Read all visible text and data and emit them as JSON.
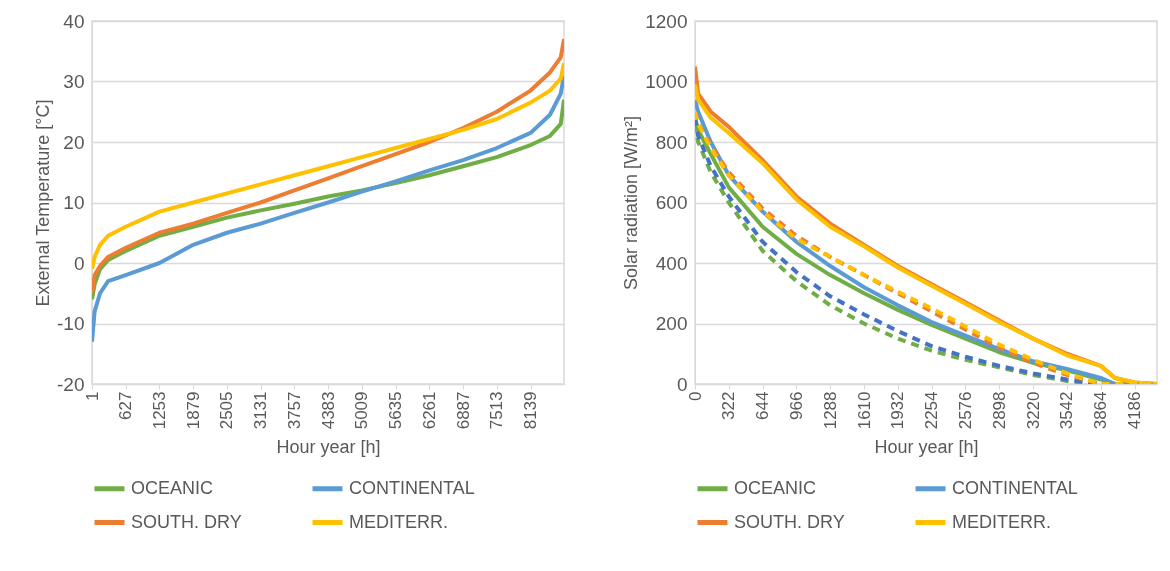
{
  "chart_data": [
    {
      "type": "line",
      "xlabel": "Hour year [h]",
      "ylabel": "External Temperature [°C]",
      "xlim": [
        1,
        8760
      ],
      "xticks": [
        1,
        627,
        1253,
        1879,
        2505,
        3131,
        3757,
        4383,
        5009,
        5635,
        6261,
        6887,
        7513,
        8139
      ],
      "ylim": [
        -20,
        40
      ],
      "yticks": [
        -20,
        -10,
        0,
        10,
        20,
        30,
        40
      ],
      "grid": "y",
      "legend": "bottom",
      "marker": "none",
      "x": [
        1,
        50,
        150,
        300,
        627,
        1253,
        1879,
        2505,
        3131,
        3757,
        4383,
        5009,
        5635,
        6261,
        6887,
        7513,
        8139,
        8500,
        8700,
        8760
      ],
      "series": [
        {
          "name": "OCEANIC",
          "color": "#70ad47",
          "values": [
            -6,
            -3.5,
            -1,
            0.5,
            2,
            4.5,
            6,
            7.5,
            8.7,
            9.8,
            11,
            12,
            13.2,
            14.5,
            16,
            17.5,
            19.5,
            21,
            23,
            27
          ]
        },
        {
          "name": "CONTINENTAL",
          "color": "#5b9bd5",
          "values": [
            -13,
            -8,
            -5,
            -3,
            -2,
            0,
            3,
            5,
            6.5,
            8.3,
            10,
            11.8,
            13.5,
            15.3,
            17,
            19,
            21.5,
            24.5,
            28,
            31
          ]
        },
        {
          "name": "SOUTH. DRY",
          "color": "#ed7d31",
          "values": [
            -5,
            -2,
            -0.5,
            1,
            2.5,
            5,
            6.5,
            8.3,
            10,
            12,
            14,
            16,
            18,
            20,
            22.3,
            25,
            28.5,
            31.5,
            34,
            37
          ]
        },
        {
          "name": "MEDITERR.",
          "color": "#ffc000",
          "values": [
            -1,
            1,
            3,
            4.5,
            6,
            8.5,
            10,
            11.5,
            13,
            14.5,
            16,
            17.5,
            19,
            20.5,
            22,
            23.8,
            26.5,
            28.5,
            30.5,
            33
          ]
        }
      ]
    },
    {
      "type": "line",
      "xlabel": "Hour year [h]",
      "ylabel": "Solar radiation [W/m²]",
      "xlim": [
        0,
        4400
      ],
      "xticks": [
        0,
        322,
        644,
        966,
        1288,
        1610,
        1932,
        2254,
        2576,
        2898,
        3220,
        3542,
        3864,
        4186
      ],
      "ylim": [
        0,
        1200
      ],
      "yticks": [
        0,
        200,
        400,
        600,
        800,
        1000,
        1200
      ],
      "grid": "y",
      "legend": "bottom",
      "marker": "none",
      "x": [
        0,
        30,
        150,
        322,
        644,
        966,
        1288,
        1610,
        1932,
        2254,
        2576,
        2898,
        3220,
        3542,
        3864,
        4000,
        4186,
        4400
      ],
      "series": [
        {
          "name": "OCEANIC",
          "color": "#70ad47",
          "values": [
            880,
            840,
            760,
            650,
            520,
            430,
            360,
            300,
            245,
            195,
            150,
            105,
            70,
            45,
            15,
            0,
            0,
            0
          ]
        },
        {
          "name": "CONTINENTAL",
          "color": "#5b9bd5",
          "values": [
            940,
            900,
            800,
            690,
            570,
            470,
            390,
            320,
            260,
            205,
            160,
            115,
            75,
            50,
            20,
            0,
            0,
            0
          ]
        },
        {
          "name": "SOUTH. DRY",
          "color": "#ed7d31",
          "values": [
            1050,
            960,
            900,
            850,
            740,
            620,
            530,
            460,
            390,
            330,
            270,
            210,
            150,
            100,
            60,
            20,
            5,
            0
          ]
        },
        {
          "name": "MEDITERR.",
          "color": "#ffc000",
          "values": [
            990,
            940,
            880,
            830,
            730,
            610,
            520,
            455,
            385,
            325,
            265,
            205,
            150,
            95,
            60,
            20,
            5,
            0
          ]
        },
        {
          "color": "#70ad47",
          "line_style": "dashed",
          "values": [
            860,
            800,
            700,
            600,
            440,
            340,
            260,
            200,
            150,
            110,
            80,
            55,
            30,
            10,
            0,
            0,
            0,
            0
          ]
        },
        {
          "color": "#4472c4",
          "line_style": "dashed",
          "values": [
            880,
            820,
            720,
            620,
            470,
            370,
            290,
            230,
            175,
            125,
            90,
            60,
            35,
            15,
            0,
            0,
            0,
            0
          ]
        },
        {
          "color": "#ed7d31",
          "line_style": "dashed",
          "values": [
            900,
            860,
            790,
            700,
            580,
            490,
            420,
            360,
            300,
            240,
            180,
            120,
            70,
            30,
            0,
            0,
            0,
            0
          ]
        },
        {
          "color": "#ffc000",
          "line_style": "dashed",
          "values": [
            900,
            860,
            780,
            690,
            570,
            480,
            420,
            360,
            305,
            250,
            190,
            130,
            80,
            35,
            0,
            0,
            0,
            0
          ]
        }
      ]
    }
  ]
}
